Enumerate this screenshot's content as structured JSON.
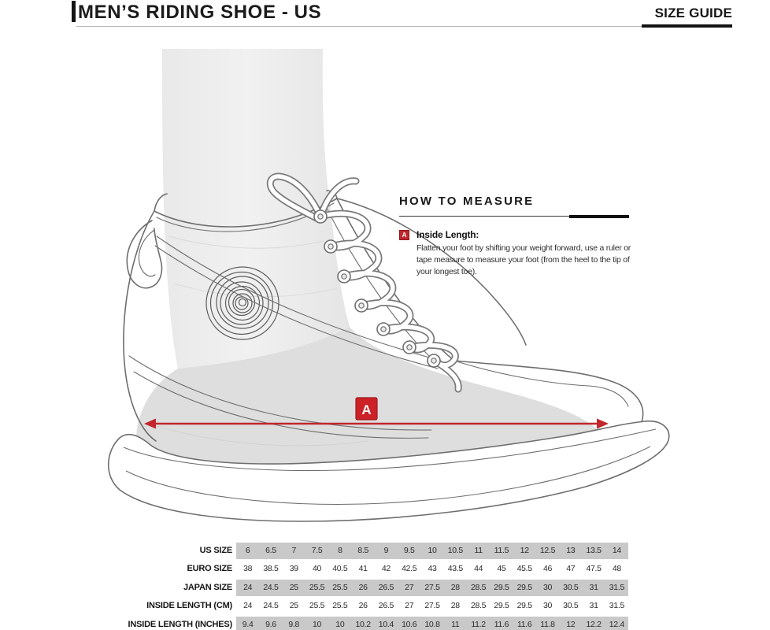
{
  "header": {
    "title": "MEN’S RIDING SHOE - US",
    "size_guide_label": "SIZE GUIDE"
  },
  "how_to_measure": {
    "heading": "HOW TO MEASURE",
    "marker": "A",
    "item_title": "Inside Length:",
    "item_description": "Flatten your foot by shifting your weight forward, use a ruler or tape measure to measure your foot (from the heel to the tip of your longest toe)."
  },
  "illustration": {
    "marker_label": "A"
  },
  "size_table": {
    "rows": [
      {
        "label": "US SIZE",
        "values": [
          "6",
          "6.5",
          "7",
          "7.5",
          "8",
          "8.5",
          "9",
          "9.5",
          "10",
          "10.5",
          "11",
          "11.5",
          "12",
          "12.5",
          "13",
          "13.5",
          "14"
        ]
      },
      {
        "label": "EURO SIZE",
        "values": [
          "38",
          "38.5",
          "39",
          "40",
          "40.5",
          "41",
          "42",
          "42.5",
          "43",
          "43.5",
          "44",
          "45",
          "45.5",
          "46",
          "47",
          "47.5",
          "48"
        ]
      },
      {
        "label": "JAPAN SIZE",
        "values": [
          "24",
          "24.5",
          "25",
          "25.5",
          "25.5",
          "26",
          "26.5",
          "27",
          "27.5",
          "28",
          "28.5",
          "29.5",
          "29.5",
          "30",
          "30.5",
          "31",
          "31.5"
        ]
      },
      {
        "label": "INSIDE LENGTH (CM)",
        "values": [
          "24",
          "24.5",
          "25",
          "25.5",
          "25.5",
          "26",
          "26.5",
          "27",
          "27.5",
          "28",
          "28.5",
          "29.5",
          "29.5",
          "30",
          "30.5",
          "31",
          "31.5"
        ]
      },
      {
        "label": "INSIDE LENGTH (INCHES)",
        "values": [
          "9.4",
          "9.6",
          "9.8",
          "10",
          "10",
          "10.2",
          "10.4",
          "10.6",
          "10.8",
          "11",
          "11.2",
          "11.6",
          "11.6",
          "11.8",
          "12",
          "12.2",
          "12.4"
        ]
      }
    ]
  },
  "colors": {
    "accent_red": "#c1272d",
    "table_shade": "#c9c9c9",
    "line_gray": "#6e6e6e"
  }
}
